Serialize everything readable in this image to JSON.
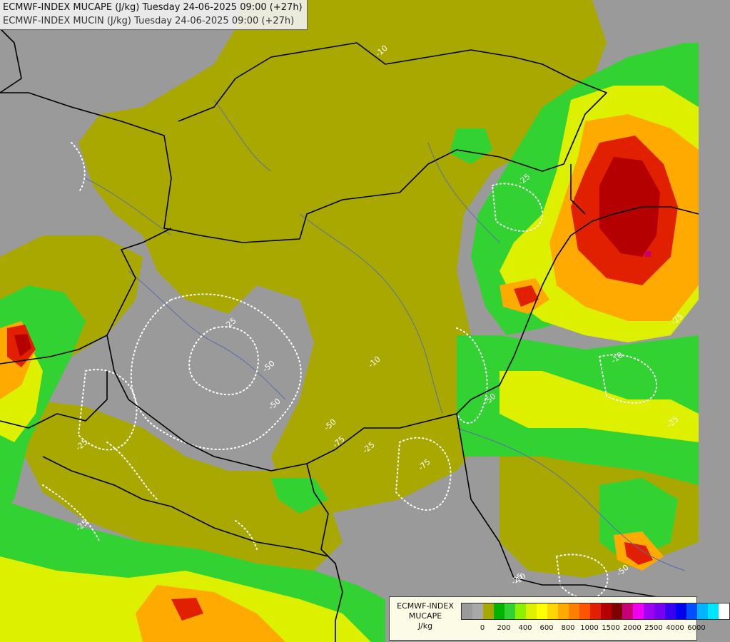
{
  "title": {
    "line1": "ECMWF-INDEX MUCAPE (J/kg) Tuesday 24-06-2025 09:00 (+27h)",
    "line2": "ECMWF-INDEX MUCIN (J/kg) Tuesday 24-06-2025 09:00 (+27h)"
  },
  "legend": {
    "line1": "ECMWF-INDEX",
    "line2": "MUCAPE",
    "line3": "J/kg",
    "colors": [
      "#9a9a9a",
      "#a8a8a8",
      "#a8a800",
      "#00b400",
      "#32d232",
      "#8cf000",
      "#dcf000",
      "#ffff00",
      "#ffd700",
      "#ffaa00",
      "#ff8000",
      "#ff5500",
      "#e02000",
      "#b40000",
      "#7f0000",
      "#c80078",
      "#f000f0",
      "#a000f0",
      "#7800f0",
      "#3c00f0",
      "#0000f0",
      "#0050ff",
      "#00b4ff",
      "#00e6ff",
      "#ffffff"
    ],
    "ticks": [
      "0",
      "200",
      "400",
      "600",
      "800",
      "1000",
      "1500",
      "2000",
      "2500",
      "4000",
      "6000"
    ]
  },
  "map": {
    "base_color": "#9a9a9a",
    "low_color": "#a8a800",
    "contour_labels": [
      "-25",
      "-50",
      "-50",
      "-25",
      "-75",
      "-10",
      "-50",
      "-25",
      "-50",
      "-25",
      "-10",
      "-10",
      "-75",
      "-10",
      "-25",
      "-25",
      "-25",
      "-25",
      "-50"
    ]
  }
}
